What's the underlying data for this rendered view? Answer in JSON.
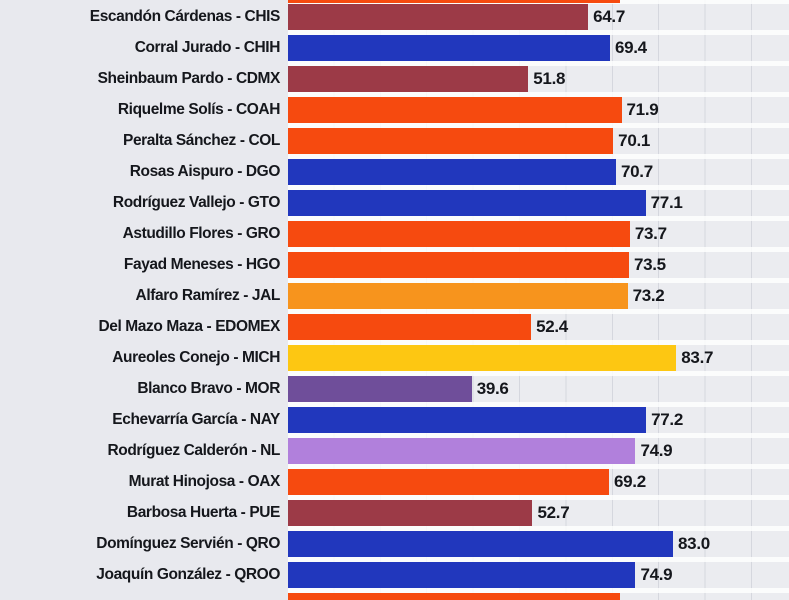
{
  "chart_data": {
    "type": "bar",
    "orientation": "horizontal",
    "title": "",
    "xlabel": "",
    "ylabel": "",
    "xlim": [
      0,
      108
    ],
    "gridline_interval": 10,
    "legend": "none",
    "palette": {
      "maroon": "#9c3a47",
      "blue": "#2137bd",
      "red_orange": "#f64a0f",
      "orange": "#f7941d",
      "yellow": "#fdc712",
      "purple": "#6f4e9a",
      "orchid": "#b180dc"
    },
    "rows": [
      {
        "label": "Escandón Cárdenas - CHIS",
        "value": 64.7,
        "display": "64.7",
        "color": "maroon"
      },
      {
        "label": "Corral Jurado - CHIH",
        "value": 69.4,
        "display": "69.4",
        "color": "blue"
      },
      {
        "label": "Sheinbaum Pardo - CDMX",
        "value": 51.8,
        "display": "51.8",
        "color": "maroon"
      },
      {
        "label": "Riquelme Solís - COAH",
        "value": 71.9,
        "display": "71.9",
        "color": "red_orange"
      },
      {
        "label": "Peralta Sánchez - COL",
        "value": 70.1,
        "display": "70.1",
        "color": "red_orange"
      },
      {
        "label": "Rosas Aispuro - DGO",
        "value": 70.7,
        "display": "70.7",
        "color": "blue"
      },
      {
        "label": "Rodríguez Vallejo - GTO",
        "value": 77.1,
        "display": "77.1",
        "color": "blue"
      },
      {
        "label": "Astudillo Flores - GRO",
        "value": 73.7,
        "display": "73.7",
        "color": "red_orange"
      },
      {
        "label": "Fayad Meneses - HGO",
        "value": 73.5,
        "display": "73.5",
        "color": "red_orange"
      },
      {
        "label": "Alfaro Ramírez - JAL",
        "value": 73.2,
        "display": "73.2",
        "color": "orange"
      },
      {
        "label": "Del Mazo Maza - EDOMEX",
        "value": 52.4,
        "display": "52.4",
        "color": "red_orange"
      },
      {
        "label": "Aureoles Conejo - MICH",
        "value": 83.7,
        "display": "83.7",
        "color": "yellow"
      },
      {
        "label": "Blanco Bravo - MOR",
        "value": 39.6,
        "display": "39.6",
        "color": "purple"
      },
      {
        "label": "Echevarría García - NAY",
        "value": 77.2,
        "display": "77.2",
        "color": "blue"
      },
      {
        "label": "Rodríguez Calderón - NL",
        "value": 74.9,
        "display": "74.9",
        "color": "orchid"
      },
      {
        "label": "Murat Hinojosa - OAX",
        "value": 69.2,
        "display": "69.2",
        "color": "red_orange"
      },
      {
        "label": "Barbosa Huerta - PUE",
        "value": 52.7,
        "display": "52.7",
        "color": "maroon"
      },
      {
        "label": "Domínguez Servién - QRO",
        "value": 83.0,
        "display": "83.0",
        "color": "blue"
      },
      {
        "label": "Joaquín González - QROO",
        "value": 74.9,
        "display": "74.9",
        "color": "blue"
      }
    ],
    "partial_rows": {
      "top": {
        "value": 71.5,
        "color": "red_orange"
      },
      "bottom": {
        "value": 71.5,
        "color": "red_orange"
      }
    }
  }
}
